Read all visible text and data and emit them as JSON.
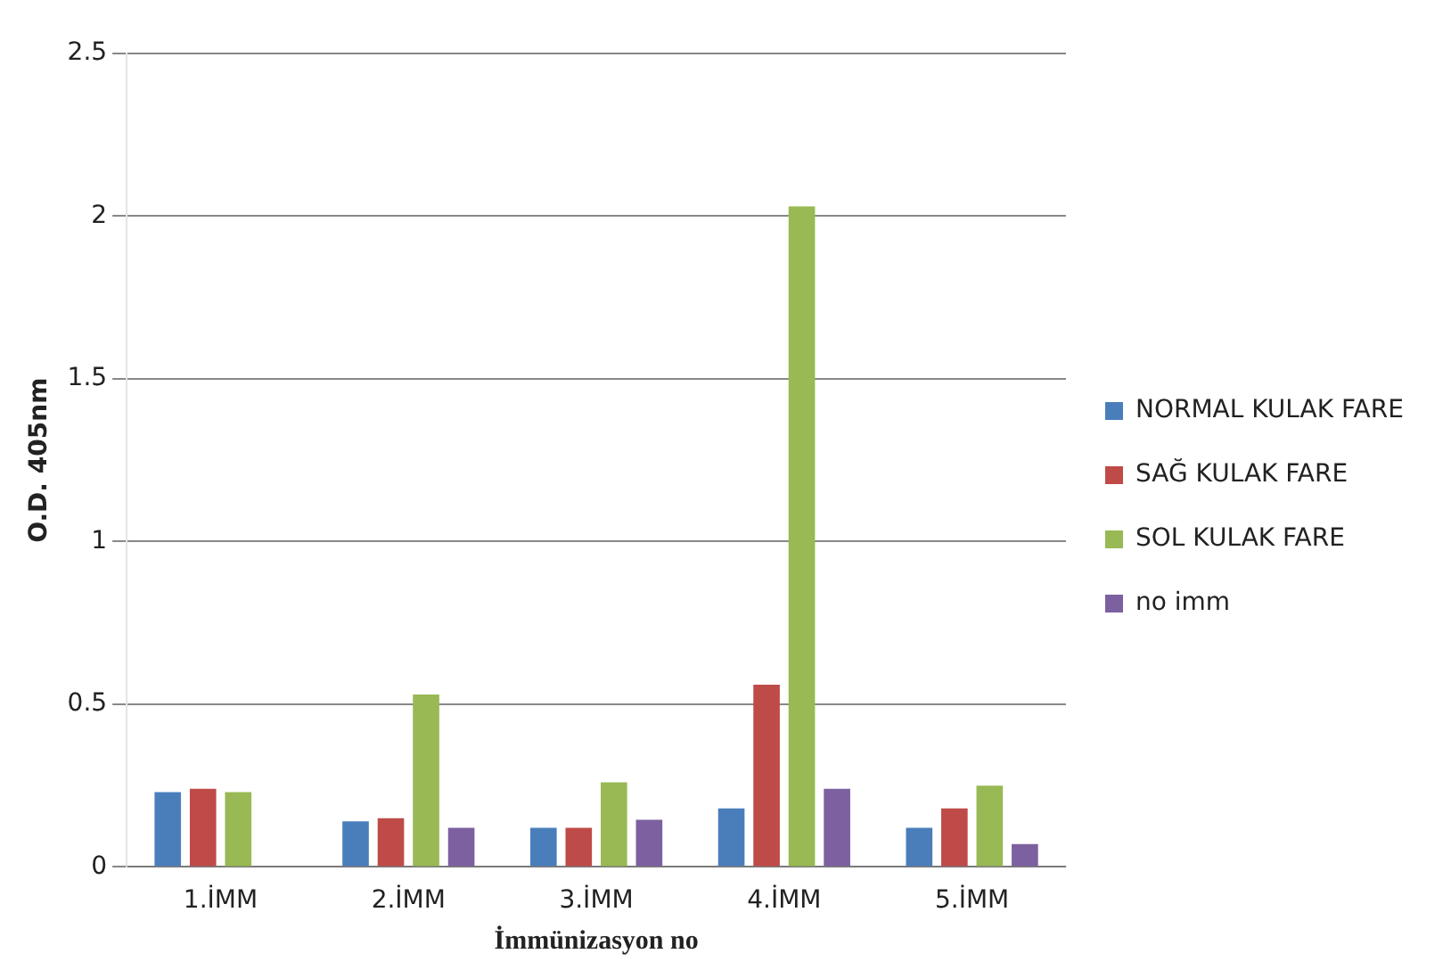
{
  "chart_data": {
    "type": "bar",
    "xlabel": "İmmünizasyon no",
    "ylabel": "O.D. 405nm",
    "categories": [
      "1.İMM",
      "2.İMM",
      "3.İMM",
      "4.İMM",
      "5.İMM"
    ],
    "series": [
      {
        "name": "NORMAL KULAK FARE",
        "color": "#4a7ebb",
        "values": [
          0.23,
          0.14,
          0.12,
          0.18,
          0.12
        ]
      },
      {
        "name": "SAĞ KULAK FARE",
        "color": "#be4b48",
        "values": [
          0.24,
          0.15,
          0.12,
          0.56,
          0.18
        ]
      },
      {
        "name": "SOL KULAK FARE",
        "color": "#98b954",
        "values": [
          0.23,
          0.53,
          0.26,
          2.03,
          0.25
        ]
      },
      {
        "name": "no imm",
        "color": "#7d60a0",
        "values": [
          null,
          0.12,
          0.145,
          0.24,
          0.07
        ]
      }
    ],
    "ylim": [
      0,
      2.5
    ],
    "yticks": [
      0,
      0.5,
      1,
      1.5,
      2,
      2.5
    ],
    "grid": "y",
    "legend": "right"
  }
}
